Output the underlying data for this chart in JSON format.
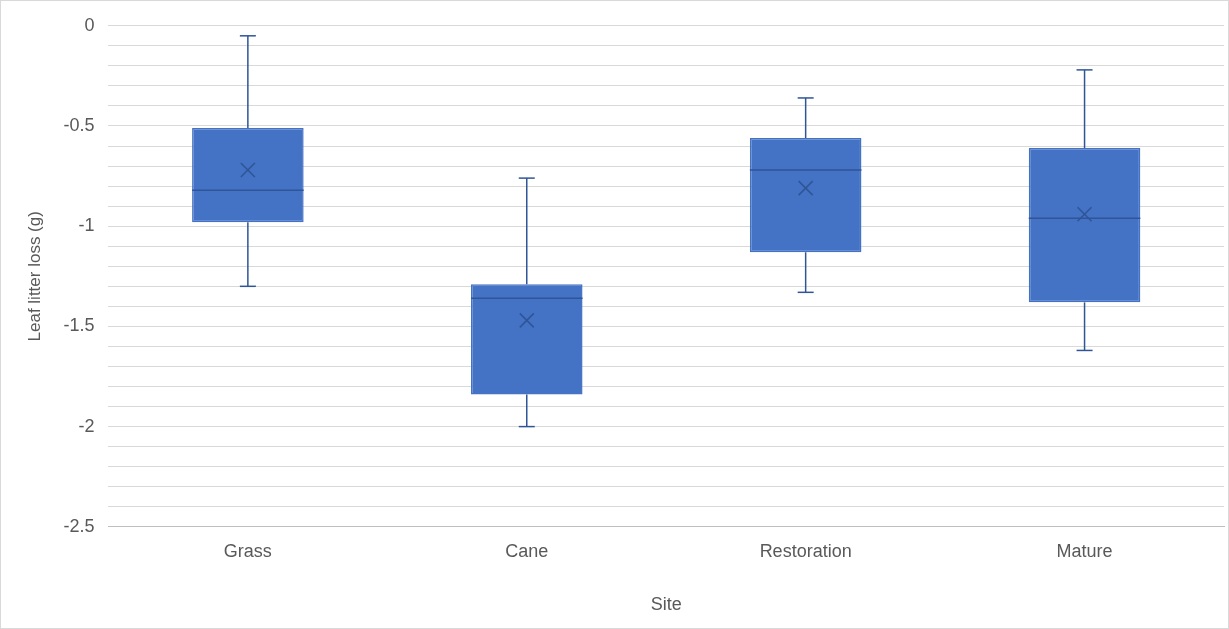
{
  "chart_data": {
    "type": "box",
    "xlabel": "Site",
    "ylabel": "Leaf litter loss (g)",
    "categories": [
      "Grass",
      "Cane",
      "Restoration",
      "Mature"
    ],
    "color": "#4472c4",
    "boxes": [
      {
        "low": -1.3,
        "q1": -0.98,
        "median": -0.82,
        "q3": -0.51,
        "high": -0.05,
        "mean": -0.72
      },
      {
        "low": -2.0,
        "q1": -1.84,
        "median": -1.36,
        "q3": -1.29,
        "high": -0.76,
        "mean": -1.47
      },
      {
        "low": -1.33,
        "q1": -1.13,
        "median": -0.72,
        "q3": -0.56,
        "high": -0.36,
        "mean": -0.81
      },
      {
        "low": -1.62,
        "q1": -1.38,
        "median": -0.96,
        "q3": -0.61,
        "high": -0.22,
        "mean": -0.94
      }
    ],
    "ylim": [
      -2.5,
      0
    ],
    "yticks": [
      {
        "value": -2.5,
        "label": "-2.5"
      },
      {
        "value": -2.4,
        "label": null
      },
      {
        "value": -2.3,
        "label": null
      },
      {
        "value": -2.2,
        "label": null
      },
      {
        "value": -2.1,
        "label": null
      },
      {
        "value": -2,
        "label": "-2"
      },
      {
        "value": -1.9,
        "label": null
      },
      {
        "value": -1.8,
        "label": null
      },
      {
        "value": -1.7,
        "label": null
      },
      {
        "value": -1.6,
        "label": null
      },
      {
        "value": -1.5,
        "label": "-1.5"
      },
      {
        "value": -1.4,
        "label": null
      },
      {
        "value": -1.3,
        "label": null
      },
      {
        "value": -1.2,
        "label": null
      },
      {
        "value": -1.1,
        "label": null
      },
      {
        "value": -1,
        "label": "-1"
      },
      {
        "value": -0.9,
        "label": null
      },
      {
        "value": -0.8,
        "label": null
      },
      {
        "value": -0.7,
        "label": null
      },
      {
        "value": -0.6,
        "label": null
      },
      {
        "value": -0.5,
        "label": "-0.5"
      },
      {
        "value": -0.4,
        "label": null
      },
      {
        "value": -0.3,
        "label": null
      },
      {
        "value": -0.2,
        "label": null
      },
      {
        "value": -0.1,
        "label": null
      },
      {
        "value": 0,
        "label": "0"
      }
    ],
    "grid": "y"
  }
}
